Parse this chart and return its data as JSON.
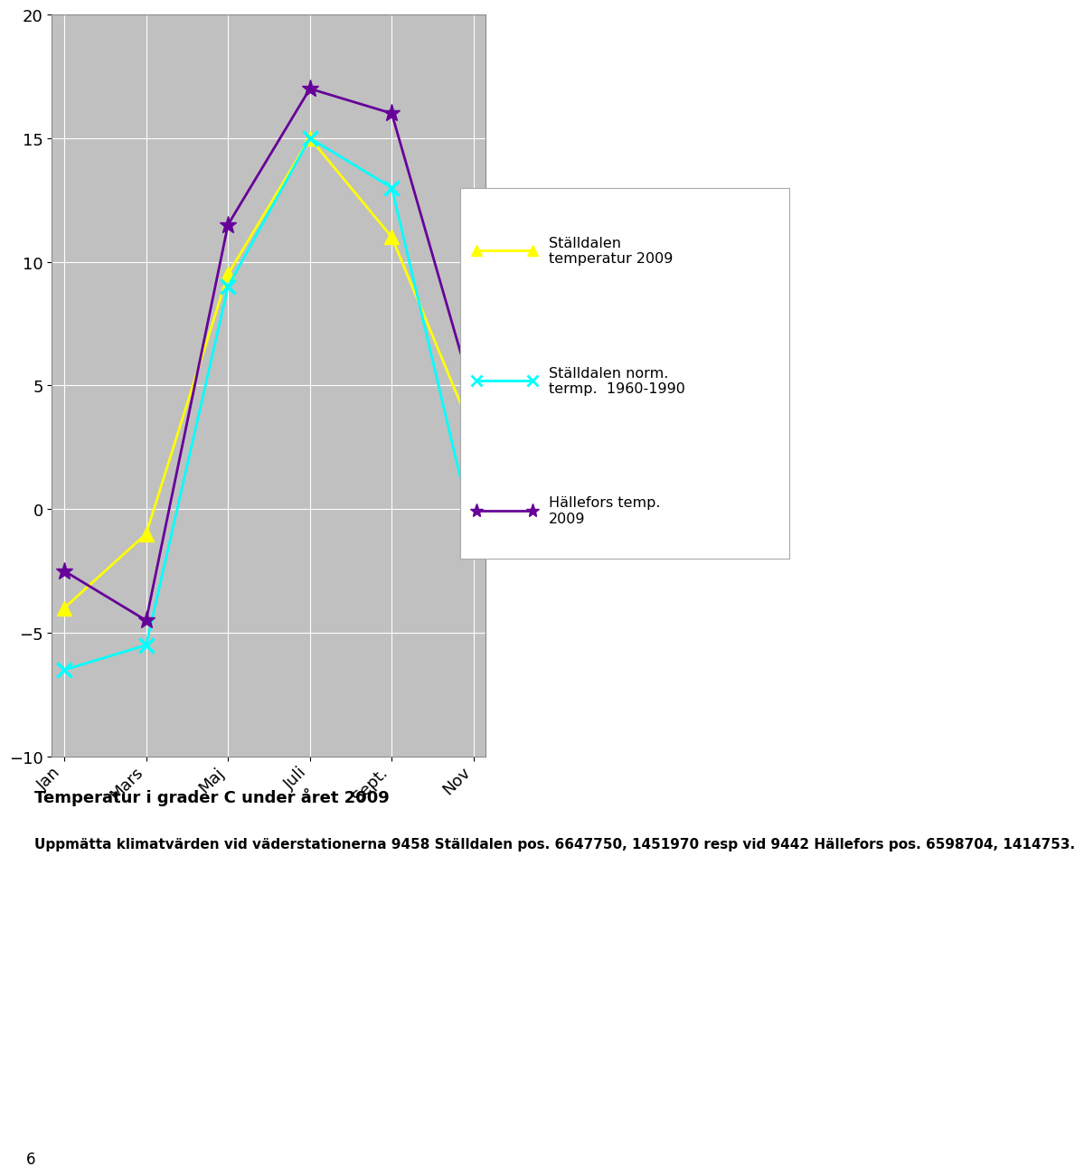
{
  "x_labels": [
    "Jan",
    "Mars",
    "Maj",
    "Juli",
    "Sept.",
    "Nov"
  ],
  "x_positions": [
    0,
    2,
    4,
    6,
    8,
    10
  ],
  "stalldalen_2009": [
    -4,
    -1,
    9.5,
    15,
    11,
    3
  ],
  "stalldalen_norm": [
    -6.5,
    -5.5,
    9,
    15,
    13,
    -1
  ],
  "hallefors_2009": [
    -2.5,
    -4.5,
    11.5,
    17,
    16,
    4.5
  ],
  "stalldalen_2009_color": "#ffff00",
  "stalldalen_norm_color": "#00ffff",
  "hallefors_2009_color": "#660099",
  "plot_bg_color": "#c0c0c0",
  "fig_bg_color": "#ffffff",
  "ylim": [
    -10,
    20
  ],
  "yticks": [
    -10,
    -5,
    0,
    5,
    10,
    15,
    20
  ],
  "legend_stalldalen_2009": "Ställdalen\ntemperatur 2009",
  "legend_stalldalen_norm": "Ställdalen norm.\ntermp.  1960-1990",
  "legend_hallefors": "Hällefors temp.\n2009",
  "title_text": "Temperatur i grader C under året 2009",
  "subtitle_text": "Uppmätta klimatvärden vid väderstationerna 9458 Ställdalen pos. 6647750, 1451970 resp vid 9442 Hällefors pos. 6598704, 1414753.",
  "footer_text": "6"
}
